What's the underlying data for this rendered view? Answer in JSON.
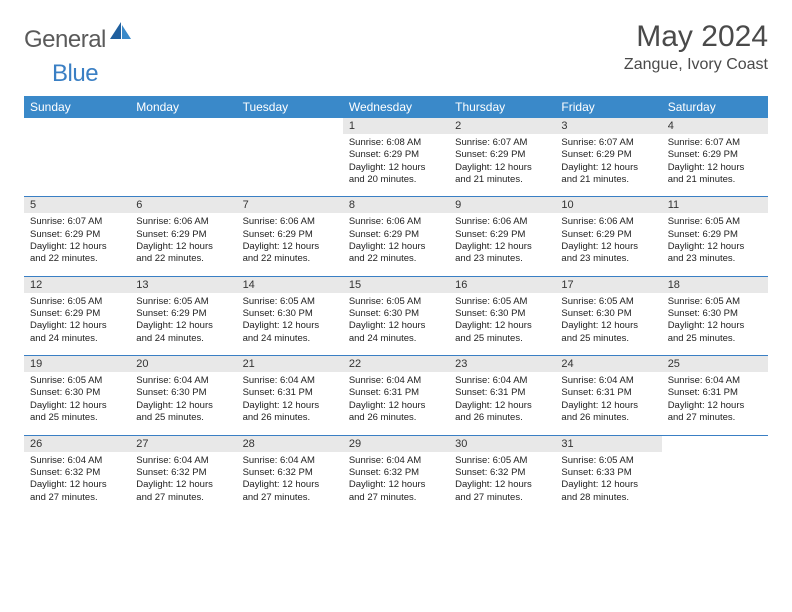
{
  "brand": {
    "part1": "General",
    "part2": "Blue"
  },
  "title": "May 2024",
  "location": "Zangue, Ivory Coast",
  "colors": {
    "header_bg": "#3a89c9",
    "header_text": "#ffffff",
    "daynum_bg": "#e8e8e8",
    "divider": "#3a7fc4",
    "logo_gray": "#5a5a5a",
    "logo_blue": "#3a7fc4",
    "body_text": "#222222",
    "page_bg": "#ffffff"
  },
  "typography": {
    "title_fontsize": 30,
    "location_fontsize": 16,
    "logo_fontsize": 24,
    "dayheader_fontsize": 12,
    "daynum_fontsize": 11,
    "detail_fontsize": 9.5
  },
  "dayNames": [
    "Sunday",
    "Monday",
    "Tuesday",
    "Wednesday",
    "Thursday",
    "Friday",
    "Saturday"
  ],
  "weeks": [
    [
      null,
      null,
      null,
      {
        "n": "1",
        "sr": "6:08 AM",
        "ss": "6:29 PM",
        "dl": "12 hours and 20 minutes."
      },
      {
        "n": "2",
        "sr": "6:07 AM",
        "ss": "6:29 PM",
        "dl": "12 hours and 21 minutes."
      },
      {
        "n": "3",
        "sr": "6:07 AM",
        "ss": "6:29 PM",
        "dl": "12 hours and 21 minutes."
      },
      {
        "n": "4",
        "sr": "6:07 AM",
        "ss": "6:29 PM",
        "dl": "12 hours and 21 minutes."
      }
    ],
    [
      {
        "n": "5",
        "sr": "6:07 AM",
        "ss": "6:29 PM",
        "dl": "12 hours and 22 minutes."
      },
      {
        "n": "6",
        "sr": "6:06 AM",
        "ss": "6:29 PM",
        "dl": "12 hours and 22 minutes."
      },
      {
        "n": "7",
        "sr": "6:06 AM",
        "ss": "6:29 PM",
        "dl": "12 hours and 22 minutes."
      },
      {
        "n": "8",
        "sr": "6:06 AM",
        "ss": "6:29 PM",
        "dl": "12 hours and 22 minutes."
      },
      {
        "n": "9",
        "sr": "6:06 AM",
        "ss": "6:29 PM",
        "dl": "12 hours and 23 minutes."
      },
      {
        "n": "10",
        "sr": "6:06 AM",
        "ss": "6:29 PM",
        "dl": "12 hours and 23 minutes."
      },
      {
        "n": "11",
        "sr": "6:05 AM",
        "ss": "6:29 PM",
        "dl": "12 hours and 23 minutes."
      }
    ],
    [
      {
        "n": "12",
        "sr": "6:05 AM",
        "ss": "6:29 PM",
        "dl": "12 hours and 24 minutes."
      },
      {
        "n": "13",
        "sr": "6:05 AM",
        "ss": "6:29 PM",
        "dl": "12 hours and 24 minutes."
      },
      {
        "n": "14",
        "sr": "6:05 AM",
        "ss": "6:30 PM",
        "dl": "12 hours and 24 minutes."
      },
      {
        "n": "15",
        "sr": "6:05 AM",
        "ss": "6:30 PM",
        "dl": "12 hours and 24 minutes."
      },
      {
        "n": "16",
        "sr": "6:05 AM",
        "ss": "6:30 PM",
        "dl": "12 hours and 25 minutes."
      },
      {
        "n": "17",
        "sr": "6:05 AM",
        "ss": "6:30 PM",
        "dl": "12 hours and 25 minutes."
      },
      {
        "n": "18",
        "sr": "6:05 AM",
        "ss": "6:30 PM",
        "dl": "12 hours and 25 minutes."
      }
    ],
    [
      {
        "n": "19",
        "sr": "6:05 AM",
        "ss": "6:30 PM",
        "dl": "12 hours and 25 minutes."
      },
      {
        "n": "20",
        "sr": "6:04 AM",
        "ss": "6:30 PM",
        "dl": "12 hours and 25 minutes."
      },
      {
        "n": "21",
        "sr": "6:04 AM",
        "ss": "6:31 PM",
        "dl": "12 hours and 26 minutes."
      },
      {
        "n": "22",
        "sr": "6:04 AM",
        "ss": "6:31 PM",
        "dl": "12 hours and 26 minutes."
      },
      {
        "n": "23",
        "sr": "6:04 AM",
        "ss": "6:31 PM",
        "dl": "12 hours and 26 minutes."
      },
      {
        "n": "24",
        "sr": "6:04 AM",
        "ss": "6:31 PM",
        "dl": "12 hours and 26 minutes."
      },
      {
        "n": "25",
        "sr": "6:04 AM",
        "ss": "6:31 PM",
        "dl": "12 hours and 27 minutes."
      }
    ],
    [
      {
        "n": "26",
        "sr": "6:04 AM",
        "ss": "6:32 PM",
        "dl": "12 hours and 27 minutes."
      },
      {
        "n": "27",
        "sr": "6:04 AM",
        "ss": "6:32 PM",
        "dl": "12 hours and 27 minutes."
      },
      {
        "n": "28",
        "sr": "6:04 AM",
        "ss": "6:32 PM",
        "dl": "12 hours and 27 minutes."
      },
      {
        "n": "29",
        "sr": "6:04 AM",
        "ss": "6:32 PM",
        "dl": "12 hours and 27 minutes."
      },
      {
        "n": "30",
        "sr": "6:05 AM",
        "ss": "6:32 PM",
        "dl": "12 hours and 27 minutes."
      },
      {
        "n": "31",
        "sr": "6:05 AM",
        "ss": "6:33 PM",
        "dl": "12 hours and 28 minutes."
      },
      null
    ]
  ],
  "labels": {
    "sunrise": "Sunrise:",
    "sunset": "Sunset:",
    "daylight": "Daylight:"
  }
}
